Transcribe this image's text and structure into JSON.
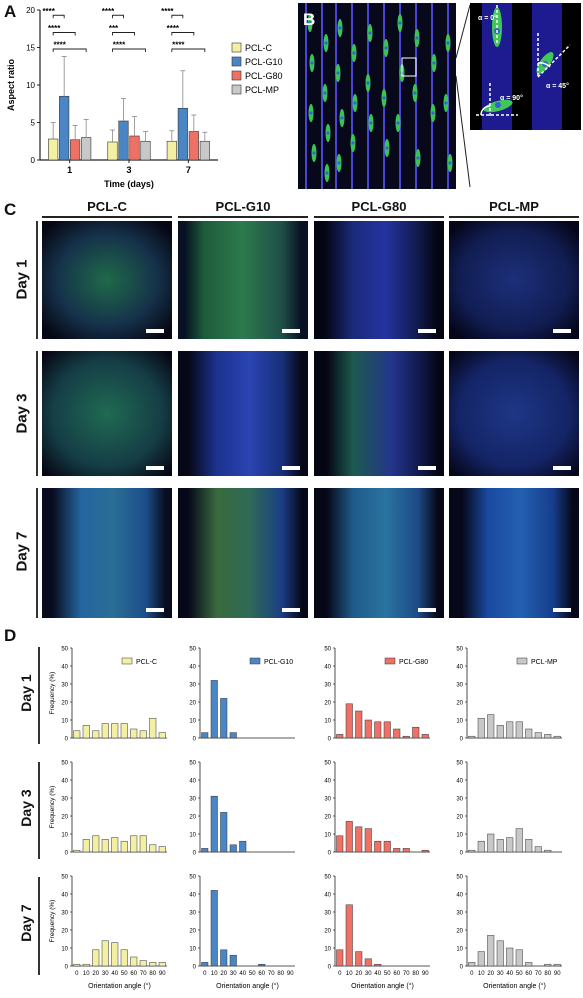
{
  "panels": {
    "a": "A",
    "b": "B",
    "c": "C",
    "d": "D"
  },
  "chart_data": [
    {
      "type": "bar",
      "panel": "A",
      "categories": [
        "1",
        "3",
        "7"
      ],
      "xlabel": "Time (days)",
      "ylabel": "Aspect ratio",
      "ylim": [
        0,
        20
      ],
      "yticks": [
        "0",
        "5",
        "10",
        "15",
        "20"
      ],
      "series": [
        {
          "name": "PCL-C",
          "color": "#f3f0a4",
          "values": [
            2.8,
            2.4,
            2.5
          ],
          "err": [
            2.2,
            1.6,
            1.4
          ]
        },
        {
          "name": "PCL-G10",
          "color": "#4a86c5",
          "values": [
            8.5,
            5.2,
            6.9
          ],
          "err": [
            5.3,
            3.0,
            5.0
          ]
        },
        {
          "name": "PCL-G80",
          "color": "#ee7166",
          "values": [
            2.7,
            3.2,
            3.8
          ],
          "err": [
            1.9,
            2.6,
            2.2
          ]
        },
        {
          "name": "PCL-MP",
          "color": "#c8c8c8",
          "values": [
            3.0,
            2.5,
            2.5
          ],
          "err": [
            2.4,
            1.3,
            1.2
          ]
        }
      ],
      "significance": [
        [
          "****",
          "****",
          "****"
        ],
        [
          "****",
          "***",
          "****"
        ],
        [
          "****",
          "****",
          "****"
        ]
      ]
    },
    {
      "type": "bar",
      "panel": "D",
      "xlabel": "Orientation angle (°)",
      "xlabel_alt": "Orientation  angle (°)",
      "ylabel": "Frequency (%)",
      "ylim": [
        0,
        50
      ],
      "yticks": [
        "0",
        "10",
        "20",
        "30",
        "40",
        "50"
      ],
      "categories": [
        "0",
        "10",
        "20",
        "30",
        "40",
        "50",
        "60",
        "70",
        "80",
        "90"
      ],
      "rows": [
        "Day 1",
        "Day 3",
        "Day 7"
      ],
      "series": [
        {
          "name": "PCL-C",
          "color": "#f3f0a4",
          "days": [
            [
              4,
              7,
              4,
              8,
              8,
              8,
              5,
              4,
              11,
              3
            ],
            [
              1,
              7,
              9,
              7,
              8,
              6,
              9,
              9,
              4,
              3
            ],
            [
              1,
              1,
              9,
              14,
              13,
              9,
              5,
              3,
              2,
              2
            ]
          ]
        },
        {
          "name": "PCL-G10",
          "color": "#4a86c5",
          "days": [
            [
              3,
              32,
              22,
              3,
              0,
              0,
              0,
              0,
              0,
              0
            ],
            [
              2,
              31,
              22,
              4,
              6,
              0,
              0,
              0,
              0,
              0
            ],
            [
              2,
              42,
              9,
              6,
              0,
              0,
              1,
              0,
              0,
              0
            ]
          ]
        },
        {
          "name": "PCL-G80",
          "color": "#ee7166",
          "days": [
            [
              2,
              19,
              15,
              10,
              9,
              9,
              5,
              1,
              6,
              2
            ],
            [
              9,
              17,
              14,
              13,
              6,
              6,
              2,
              2,
              0,
              1
            ],
            [
              9,
              34,
              8,
              4,
              1,
              0,
              0,
              0,
              0,
              0
            ]
          ]
        },
        {
          "name": "PCL-MP",
          "color": "#c8c8c8",
          "days": [
            [
              1,
              11,
              13,
              7,
              9,
              9,
              5,
              3,
              2,
              1
            ],
            [
              1,
              6,
              10,
              7,
              8,
              13,
              7,
              3,
              1,
              0
            ],
            [
              2,
              8,
              17,
              14,
              10,
              9,
              2,
              0,
              1,
              1
            ]
          ]
        }
      ]
    }
  ],
  "panel_b": {
    "angles": [
      "α = 0°",
      "α = 90°",
      "α = 45°"
    ]
  },
  "panel_c": {
    "columns": [
      "PCL-C",
      "PCL-G10",
      "PCL-G80",
      "PCL-MP"
    ],
    "rows": [
      "Day 1",
      "Day 3",
      "Day 7"
    ]
  }
}
